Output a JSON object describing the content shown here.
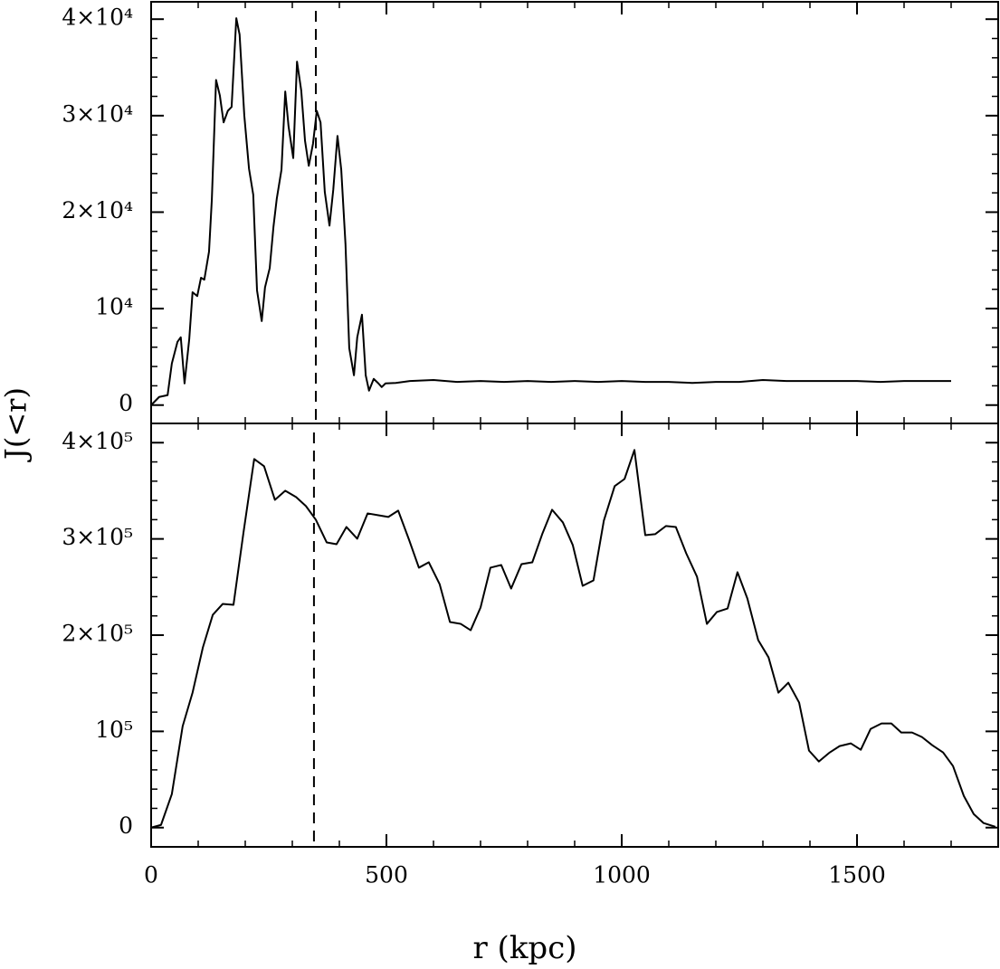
{
  "chart_data": [
    {
      "type": "line",
      "ylabel": "J(<r)",
      "xlim": [
        0,
        1800
      ],
      "xticks": [
        0,
        500,
        1000,
        1500
      ],
      "ylim": [
        -1900,
        41800
      ],
      "yticks": [
        0,
        {
          "value": 10000,
          "label": "10⁴"
        },
        {
          "value": 20000,
          "label": "2×10⁴"
        },
        {
          "value": 30000,
          "label": "3×10⁴"
        },
        {
          "value": 40000,
          "label": "4×10⁴"
        }
      ],
      "vline": 350,
      "color": "#000000",
      "x": [
        0,
        17,
        35,
        44,
        56,
        63,
        71,
        81,
        88,
        98,
        106,
        113,
        123,
        129,
        138,
        146,
        154,
        163,
        171,
        181,
        188,
        198,
        208,
        217,
        225,
        235,
        242,
        252,
        260,
        267,
        277,
        285,
        292,
        302,
        310,
        319,
        327,
        335,
        344,
        352,
        360,
        369,
        379,
        387,
        396,
        404,
        413,
        421,
        431,
        438,
        448,
        456,
        463,
        473,
        483,
        490,
        498,
        520,
        550,
        600,
        650,
        700,
        750,
        800,
        850,
        900,
        950,
        1000,
        1050,
        1100,
        1150,
        1200,
        1250,
        1300,
        1350,
        1400,
        1450,
        1500,
        1550,
        1600,
        1650,
        1700
      ],
      "values": [
        0,
        843,
        1030,
        4310,
        6560,
        7030,
        2250,
        6840,
        11700,
        11300,
        13200,
        13000,
        15900,
        21300,
        33700,
        32100,
        29300,
        30500,
        30900,
        40100,
        38400,
        30000,
        24500,
        21800,
        11900,
        8710,
        12200,
        14200,
        18500,
        21400,
        24400,
        32500,
        28900,
        25600,
        35600,
        32600,
        27400,
        24800,
        27100,
        30500,
        29300,
        22100,
        18600,
        22300,
        27900,
        24400,
        16700,
        5900,
        3090,
        7030,
        9370,
        3090,
        1500,
        2720,
        2250,
        1870,
        2250,
        2300,
        2500,
        2600,
        2400,
        2500,
        2400,
        2500,
        2400,
        2500,
        2400,
        2500,
        2400,
        2400,
        2300,
        2400,
        2400,
        2600,
        2500,
        2500,
        2500,
        2500,
        2400,
        2500,
        2500,
        2500
      ]
    },
    {
      "type": "line",
      "xlabel": "r (kpc)",
      "xlim": [
        0,
        1800
      ],
      "xticks": [
        0,
        500,
        1000,
        1500
      ],
      "ylim": [
        -20000,
        420000
      ],
      "yticks": [
        0,
        {
          "value": 100000,
          "label": "10⁵"
        },
        {
          "value": 200000,
          "label": "2×10⁵"
        },
        {
          "value": 300000,
          "label": "3×10⁵"
        },
        {
          "value": 400000,
          "label": "4×10⁵"
        }
      ],
      "vline": 346,
      "color": "#000000",
      "x": [
        0,
        21,
        44,
        67,
        88,
        110,
        131,
        152,
        175,
        196,
        219,
        240,
        263,
        285,
        308,
        329,
        350,
        373,
        394,
        415,
        438,
        460,
        483,
        504,
        525,
        548,
        569,
        590,
        613,
        635,
        658,
        679,
        700,
        721,
        744,
        765,
        787,
        810,
        831,
        852,
        875,
        896,
        917,
        940,
        962,
        985,
        1006,
        1027,
        1050,
        1071,
        1094,
        1115,
        1137,
        1160,
        1181,
        1202,
        1225,
        1246,
        1267,
        1290,
        1312,
        1333,
        1354,
        1377,
        1398,
        1419,
        1442,
        1463,
        1487,
        1508,
        1529,
        1552,
        1573,
        1594,
        1617,
        1638,
        1660,
        1683,
        1704,
        1727,
        1748,
        1769,
        1794
      ],
      "values": [
        0,
        2800,
        34800,
        105400,
        140200,
        187300,
        221100,
        232400,
        231500,
        305800,
        383000,
        375500,
        340600,
        350100,
        343500,
        334100,
        319900,
        296400,
        294500,
        312400,
        300200,
        326500,
        324600,
        322800,
        329400,
        299200,
        270100,
        275700,
        253100,
        213600,
        211700,
        205100,
        228700,
        270100,
        272900,
        248400,
        273800,
        275700,
        304900,
        330300,
        317100,
        293600,
        251200,
        256900,
        319000,
        354800,
        362300,
        392400,
        303900,
        304900,
        313400,
        312400,
        285100,
        260700,
        211700,
        224000,
        227700,
        265400,
        238100,
        194800,
        176900,
        140200,
        150600,
        129900,
        80000,
        68700,
        78100,
        84700,
        87500,
        80900,
        102600,
        108200,
        108200,
        98800,
        98800,
        94100,
        85600,
        78100,
        64000,
        32900,
        14100,
        4700,
        900
      ]
    }
  ]
}
